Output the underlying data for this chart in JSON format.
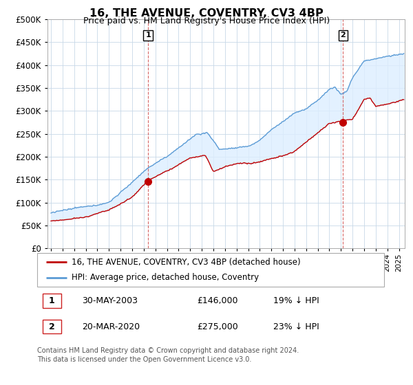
{
  "title": "16, THE AVENUE, COVENTRY, CV3 4BP",
  "subtitle": "Price paid vs. HM Land Registry's House Price Index (HPI)",
  "hpi_color": "#5b9bd5",
  "price_color": "#c00000",
  "marker1_price": 146000,
  "marker2_price": 275000,
  "marker1_x": 2003.37,
  "marker2_x": 2020.17,
  "legend_line1": "16, THE AVENUE, COVENTRY, CV3 4BP (detached house)",
  "legend_line2": "HPI: Average price, detached house, Coventry",
  "note1_num": "1",
  "note1_date": "30-MAY-2003",
  "note1_price": "£146,000",
  "note1_hpi": "19% ↓ HPI",
  "note2_num": "2",
  "note2_date": "20-MAR-2020",
  "note2_price": "£275,000",
  "note2_hpi": "23% ↓ HPI",
  "footer": "Contains HM Land Registry data © Crown copyright and database right 2024.\nThis data is licensed under the Open Government Licence v3.0.",
  "ylim_max": 500000,
  "yticks": [
    0,
    50000,
    100000,
    150000,
    200000,
    250000,
    300000,
    350000,
    400000,
    450000,
    500000
  ],
  "fill_color": "#ddeeff",
  "bg_color": "#f0f4ff"
}
